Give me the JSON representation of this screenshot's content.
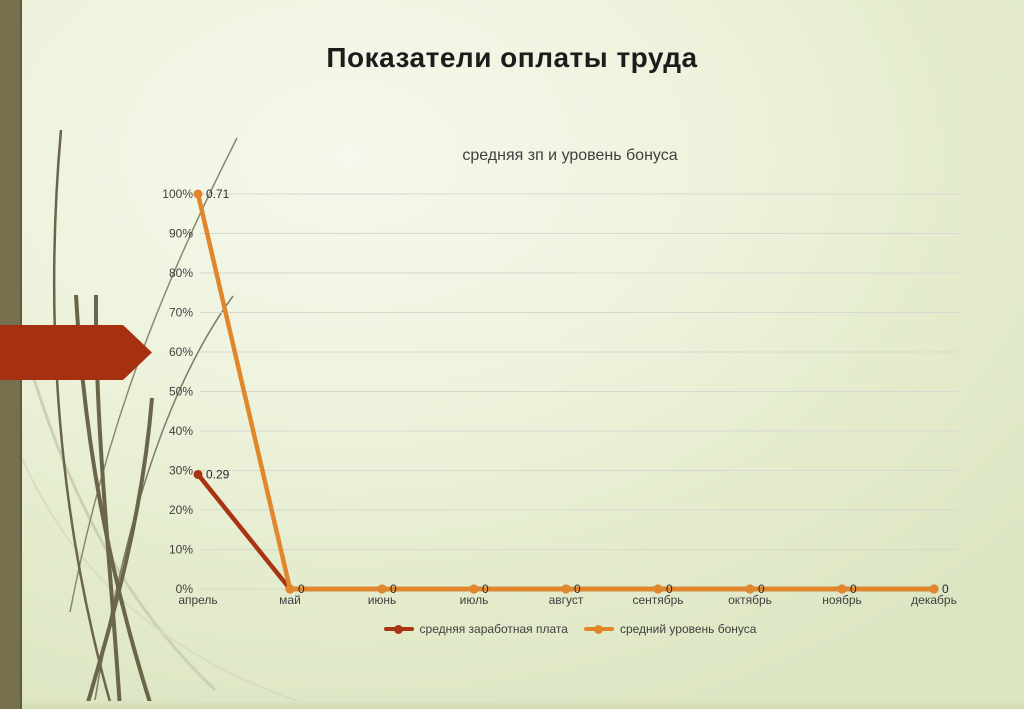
{
  "slide": {
    "title": "Показатели оплаты труда"
  },
  "chart_data": {
    "type": "line",
    "title": "средняя зп и уровень бонуса",
    "categories": [
      "апрель",
      "май",
      "июнь",
      "июль",
      "август",
      "сентябрь",
      "октябрь",
      "ноябрь",
      "декабрь"
    ],
    "series": [
      {
        "name": "средняя заработная плата",
        "color": "#a93413",
        "marker": "circle",
        "values": [
          0.29,
          0,
          0,
          0,
          0,
          0,
          0,
          0,
          0
        ],
        "point_labels": [
          "0.29",
          "",
          "",
          "",
          "",
          "",
          "",
          "",
          ""
        ]
      },
      {
        "name": "средний уровень бонуса",
        "color": "#e2862b",
        "marker": "circle",
        "values": [
          0.71,
          0,
          0,
          0,
          0,
          0,
          0,
          0,
          0
        ],
        "point_labels": [
          "0.71",
          "0",
          "0",
          "0",
          "0",
          "0",
          "0",
          "0",
          "0"
        ]
      }
    ],
    "stacked": true,
    "y_ticks": [
      "0%",
      "10%",
      "20%",
      "30%",
      "40%",
      "50%",
      "60%",
      "70%",
      "80%",
      "90%",
      "100%"
    ],
    "ylim": [
      0,
      1
    ],
    "grid": true,
    "legend_position": "bottom",
    "colors": {
      "gridline": "#d8d8d0",
      "axis_text": "#404040",
      "label_text": "#2b2b2b"
    }
  },
  "decor": {
    "arrow_color": "#a53110",
    "left_bar_color": "#77704f"
  }
}
